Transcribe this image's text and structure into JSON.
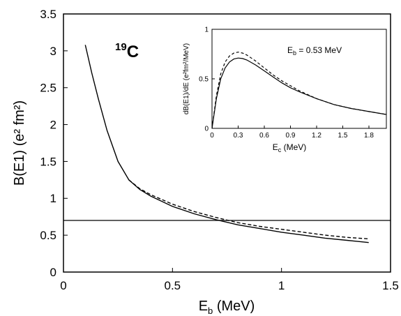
{
  "chart_data": [
    {
      "type": "line",
      "role": "main",
      "xlabel": "E",
      "xlabel_sub": "b",
      "xlabel_unit": " (MeV)",
      "ylabel": "B(E1) (e² fm²)",
      "annotation": {
        "mass": "19",
        "element": "C"
      },
      "xlim": [
        0,
        1.5
      ],
      "ylim": [
        0,
        3.5
      ],
      "xticks": [
        "0",
        "0.5",
        "1",
        "1.5"
      ],
      "yticks": [
        "0",
        "0.5",
        "1",
        "1.5",
        "2",
        "2.5",
        "3",
        "3.5"
      ],
      "grid": false,
      "reference_line_y": 0.7,
      "series": [
        {
          "style": "solid",
          "x": [
            0.1,
            0.13,
            0.16,
            0.2,
            0.25,
            0.3,
            0.35,
            0.4,
            0.5,
            0.6,
            0.7,
            0.8,
            0.9,
            1.0,
            1.1,
            1.2,
            1.3,
            1.4
          ],
          "y": [
            3.08,
            2.7,
            2.35,
            1.92,
            1.5,
            1.25,
            1.12,
            1.03,
            0.89,
            0.79,
            0.71,
            0.64,
            0.59,
            0.54,
            0.5,
            0.46,
            0.43,
            0.4
          ]
        },
        {
          "style": "dashed",
          "x": [
            0.3,
            0.35,
            0.4,
            0.5,
            0.6,
            0.7,
            0.8,
            0.9,
            1.0,
            1.1,
            1.2,
            1.3,
            1.4
          ],
          "y": [
            1.25,
            1.13,
            1.05,
            0.92,
            0.82,
            0.74,
            0.67,
            0.62,
            0.58,
            0.54,
            0.5,
            0.47,
            0.45
          ]
        }
      ]
    },
    {
      "type": "line",
      "role": "inset",
      "xlabel": "E",
      "xlabel_sub": "c",
      "xlabel_unit": " (MeV)",
      "ylabel": "dB(E1)/dE (e²fm²/MeV)",
      "annotation": {
        "text": "E",
        "sub": "b",
        "rest": " = 0.53 MeV"
      },
      "xlim": [
        0,
        2.0
      ],
      "ylim": [
        0,
        1.0
      ],
      "xticks": [
        "0",
        "0.3",
        "0.6",
        "0.9",
        "1.2",
        "1.5",
        "1.8"
      ],
      "yticks": [
        "0",
        "0.5",
        "1"
      ],
      "grid": false,
      "series": [
        {
          "style": "solid",
          "x": [
            0,
            0.05,
            0.1,
            0.15,
            0.2,
            0.25,
            0.3,
            0.35,
            0.4,
            0.5,
            0.6,
            0.7,
            0.8,
            0.9,
            1.0,
            1.2,
            1.4,
            1.6,
            1.8,
            2.0
          ],
          "y": [
            0,
            0.3,
            0.5,
            0.61,
            0.67,
            0.7,
            0.71,
            0.705,
            0.69,
            0.64,
            0.58,
            0.52,
            0.46,
            0.41,
            0.37,
            0.3,
            0.24,
            0.2,
            0.17,
            0.14
          ]
        },
        {
          "style": "dashed",
          "x": [
            0,
            0.05,
            0.1,
            0.15,
            0.2,
            0.25,
            0.3,
            0.35,
            0.4,
            0.5,
            0.6,
            0.7,
            0.8,
            0.9,
            1.0,
            1.2,
            1.4,
            1.6,
            1.8,
            2.0
          ],
          "y": [
            0,
            0.33,
            0.55,
            0.67,
            0.73,
            0.76,
            0.77,
            0.76,
            0.74,
            0.68,
            0.61,
            0.54,
            0.48,
            0.43,
            0.38,
            0.3,
            0.24,
            0.2,
            0.17,
            0.14
          ]
        }
      ]
    }
  ]
}
